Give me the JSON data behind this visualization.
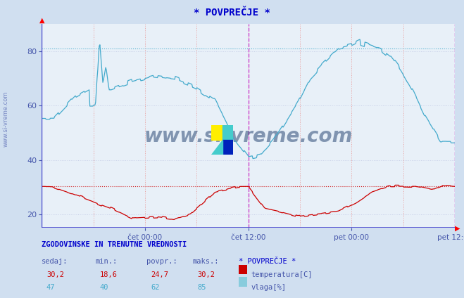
{
  "title": "* POVPREČJE *",
  "bg_color": "#d0dff0",
  "plot_bg_color": "#e8f0f8",
  "ylim": [
    15,
    90
  ],
  "yticks": [
    20,
    40,
    60,
    80
  ],
  "label_color": "#4455aa",
  "title_color": "#0000cc",
  "temp_color": "#cc0000",
  "humidity_color": "#44aacc",
  "vline_color": "#cc44cc",
  "hline_temp": 30.2,
  "hline_humidity": 81.0,
  "xtick_labels": [
    "čet 00:00",
    "čet 12:00",
    "pet 00:00",
    "pet 12:00"
  ],
  "watermark": "www.si-vreme.com",
  "watermark_color": "#1a3a6a",
  "footer_bold": "ZGODOVINSKE IN TRENUTNE VREDNOSTI",
  "footer_headers": [
    "sedaj:",
    "min.:",
    "povpr.:",
    "maks.:"
  ],
  "footer_temp_values": [
    "30,2",
    "18,6",
    "24,7",
    "30,2"
  ],
  "footer_hum_values": [
    "47",
    "40",
    "62",
    "85"
  ],
  "footer_legend_title": "* POVPREČJE *",
  "temp_label": "temperatura[C]",
  "hum_label": "vlaga[%]",
  "temp_color_swatch": "#cc0000",
  "hum_color_swatch": "#88ccdd",
  "grid_h_color": "#c8d0e8",
  "grid_v_color": "#e8a0a0",
  "border_color": "#4444cc",
  "right_border_color": "#cc0000"
}
